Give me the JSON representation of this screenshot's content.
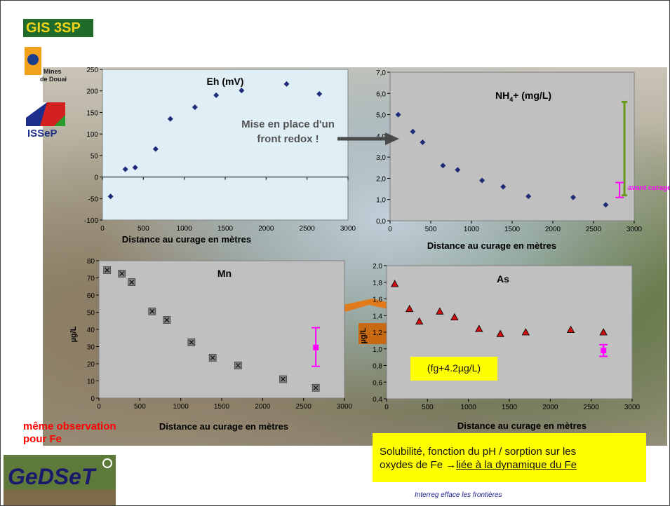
{
  "logos": {
    "gis": "GIS 3SP",
    "mines": "Mines de Douai",
    "issep": "ISSeP",
    "gedset": "GeDSeT"
  },
  "annotations": {
    "redox": [
      "Mise en place d'un",
      "front redox !"
    ],
    "avant_curage": "avant curage",
    "fg": "(fg+4.2µg/L)",
    "same_obs": [
      "même observation",
      "pour Fe"
    ],
    "solubility_line1": "Solubilité, fonction du pH / sorption sur les",
    "solubility_line2_plain": "oxydes de Fe →",
    "solubility_line2_underlined": "liée à la dynamique du Fe",
    "footer": "Interreg efface les frontières"
  },
  "colors": {
    "plot_bg": "#c0c0c0",
    "eh_bg": "#dfeff5",
    "diamond": "#1e2b78",
    "triangle": "#d01010",
    "mn_marker": "#808080",
    "magenta": "#ff00ff",
    "green_bar": "#6a9a1a",
    "highlight": "#ffff00",
    "red_text": "#ff0000"
  },
  "chart_data": [
    {
      "id": "eh",
      "type": "scatter",
      "title": "Eh (mV)",
      "xlabel": "Distance au curage en mètres",
      "ylabel": "",
      "xlim": [
        0,
        3000
      ],
      "ylim": [
        -100,
        250
      ],
      "xticks": [
        "0",
        "500",
        "1000",
        "1500",
        "2000",
        "2500",
        "3000"
      ],
      "yticks": [
        "-100",
        "-50",
        "0",
        "50",
        "100",
        "150",
        "200",
        "250"
      ],
      "marker": "diamond",
      "x": [
        100,
        280,
        400,
        650,
        830,
        1130,
        1390,
        1700,
        2250,
        2650
      ],
      "y": [
        -45,
        18,
        22,
        65,
        135,
        162,
        190,
        201,
        216,
        193
      ]
    },
    {
      "id": "nh4",
      "type": "scatter",
      "title": "NH₄+ (mg/L)",
      "xlabel": "Distance au curage en mètres",
      "ylabel": "",
      "xlim": [
        0,
        3000
      ],
      "ylim": [
        0,
        7
      ],
      "xticks": [
        "0",
        "500",
        "1000",
        "1500",
        "2000",
        "2500",
        "3000"
      ],
      "yticks": [
        "0,0",
        "1,0",
        "2,0",
        "3,0",
        "4,0",
        "5,0",
        "6,0",
        "7,0"
      ],
      "marker": "diamond",
      "x": [
        100,
        280,
        400,
        650,
        830,
        1130,
        1390,
        1700,
        2250,
        2650
      ],
      "y": [
        5.0,
        4.2,
        3.7,
        2.6,
        2.4,
        1.9,
        1.6,
        1.15,
        1.1,
        0.75
      ],
      "reference_before_curage": {
        "x": 2820,
        "low": 1.1,
        "high": 1.8
      },
      "range_bar": {
        "x": 2880,
        "low": 1.2,
        "high": 5.6
      }
    },
    {
      "id": "mn",
      "type": "scatter",
      "title": "Mn",
      "xlabel": "Distance au curage en mètres",
      "ylabel": "µg/L",
      "xlim": [
        0,
        3000
      ],
      "ylim": [
        0,
        80
      ],
      "xticks": [
        "0",
        "500",
        "1000",
        "1500",
        "2000",
        "2500",
        "3000"
      ],
      "yticks": [
        "0",
        "10",
        "20",
        "30",
        "40",
        "50",
        "60",
        "70",
        "80"
      ],
      "marker": "x-square",
      "x": [
        100,
        280,
        400,
        650,
        830,
        1130,
        1390,
        1700,
        2250,
        2650
      ],
      "y": [
        74.5,
        72.5,
        67.5,
        50.5,
        45.5,
        32.5,
        23.5,
        19,
        11,
        6
      ],
      "reference_before_curage": {
        "x": 2650,
        "value": 29.5,
        "low": 18.5,
        "high": 41
      }
    },
    {
      "id": "as",
      "type": "scatter",
      "title": "As",
      "xlabel": "Distance au curage en mètres",
      "ylabel": "µg/L",
      "xlim": [
        0,
        3000
      ],
      "ylim": [
        0.4,
        2.0
      ],
      "xticks": [
        "0",
        "500",
        "1000",
        "1500",
        "2000",
        "2500",
        "3000"
      ],
      "yticks": [
        "0,4",
        "0,6",
        "0,8",
        "1,0",
        "1,2",
        "1,4",
        "1,6",
        "1,8",
        "2,0"
      ],
      "marker": "triangle",
      "x": [
        100,
        280,
        400,
        650,
        830,
        1130,
        1390,
        1700,
        2250,
        2650
      ],
      "y": [
        1.78,
        1.48,
        1.33,
        1.45,
        1.38,
        1.24,
        1.18,
        1.2,
        1.23,
        1.2
      ],
      "reference_before_curage": {
        "x": 2650,
        "value": 0.98,
        "low": 0.91,
        "high": 1.05
      }
    }
  ]
}
